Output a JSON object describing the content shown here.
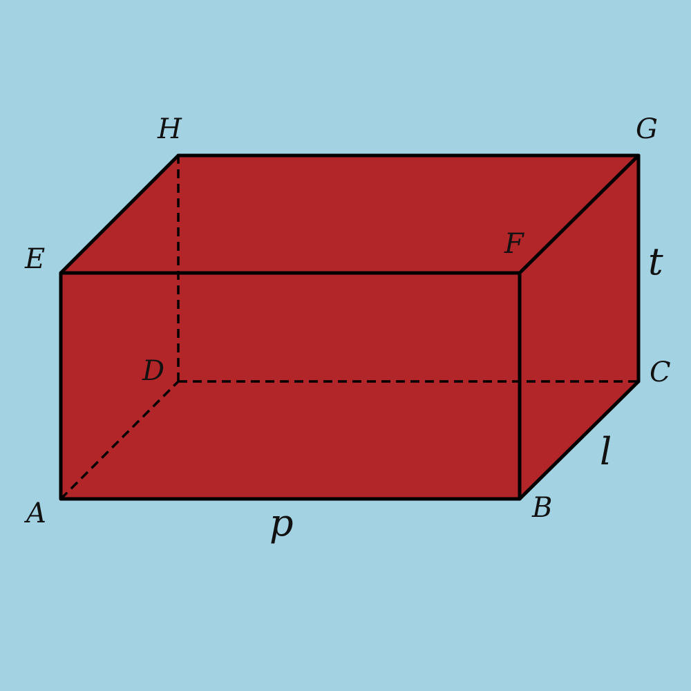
{
  "figure": {
    "background_color": "#a3d2e3",
    "solid_color": "#b22529",
    "edge_color": "#000000",
    "vertices": {
      "A": "A",
      "B": "B",
      "C": "C",
      "D": "D",
      "E": "E",
      "F": "F",
      "G": "G",
      "H": "H"
    },
    "dimensions": {
      "length": "p",
      "width": "l",
      "height": "t"
    }
  }
}
